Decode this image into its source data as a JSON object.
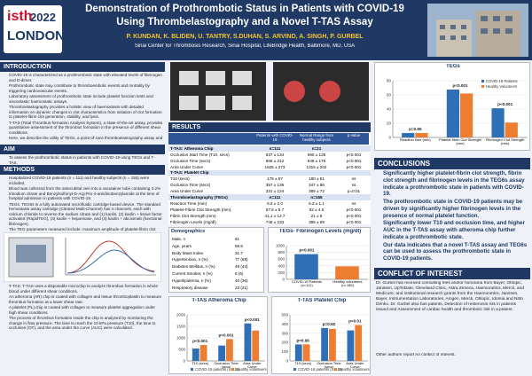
{
  "header": {
    "logo_text": "isth",
    "logo_year": "2022",
    "logo_city": "LONDON",
    "title_line1": "Demonstration of Prothrombotic Status in Patients with COVID-19",
    "title_line2": "Using Thrombelastography and a Novel T-TAS Assay",
    "authors": "P. KUNDAN, K. BLIDEN, U. TANTRY, S.DUHAN, S. ARVIND, A. SINGH, P. GURBEL",
    "affiliation": "Sinai Center for Thrombosis Research, Sinai Hospital, LifeBridge Health, Baltimore, MD, USA"
  },
  "introduction": {
    "heading": "INTRODUCTION",
    "bullets": [
      "COVID-19 is characterized as a prothrombotic state with elevated levels of fibrinogen and D-dimer.",
      "Prothrombotic state may contribute to thromboembolic events and mortality by triggering cardiovascular events.",
      "Laboratory assessment of prothrombotic state include platelet function tests and viscoelastic haemostatic assays.",
      "Thromboelastography provides a holistic view of haemostasis with detailed information on dynamic changes in clot characteristics from initiation of clot formation to platelet-fibrin clot generation, stability, and lysis.",
      "T-TAS (Total Thrombus-formation Analysis System), a state-of-the-art assay, provides quantitative assessment of the thrombus formation in the presence of different shear conditions.",
      "Here, we describe the utility of TEGs, a point-of-care thromboelastography assay and T-TAS to assess prothrombotic state in patients with COVID-19."
    ]
  },
  "aim": {
    "heading": "AIM",
    "bullets": [
      "To assess the prothrombotic status in patients with COVID-19 using TEGs and T-TAS."
    ]
  },
  "methods": {
    "heading": "METHODS",
    "bullets": [
      "Hospitalized COVID-19 patients (n = 111) and healthy subjects (n = 155) were included.",
      "Blood was collected from the antecubital vein into a vacutainer tube containing 3.2% trisodium citrate and Benzylsulfonyl-D-Arg-Pro-4-amidinobenzylamide at the time of hospital admission in patients with COVID-19.",
      "TEGs: TEG6s is a fully automated microfluidic cartridge-based device. The standard hemostasis assay cartridge (Citrated Multi-Channel) has 4 channels, each with calcium chloride to reverse the sodium citrate and (1) kaolin, (2) kaolin + tissue factor activated (RapidTEG), (3) kaolin + heparinase, and (4) kaolin + abciximab (functional fibrinogen).",
      "The TEG parameters measured include: maximum amplitude of platelet-fibrin clot (MA) and fibrin clot, time to initial platelet-fibrin clot formation (R), fibrinogen level."
    ],
    "bullets2": [
      "T-TAS: T-TAS uses a disposable microchip to analyze thrombus formation in whole blood under different shear conditions.",
      "An atheroma (AR) chip is coated with collagen and tissue thromboplastin to measure thrombus formation at a lower shear rate.",
      "A platelet (PL) chip is coated with collagen to measure platelet aggregation under high shear conditions.",
      "The process of thrombus formation inside the chip is analyzed by monitoring the change in flow pressure. The time to reach the 10 kPa pressure (T10), the time to occlusion (OT), and the area under the curve (AUC) were calculated."
    ]
  },
  "results": {
    "heading": "RESULTS",
    "columns": [
      "Patients with COVID-19",
      "Normal Range from healthy subjects",
      "p-value"
    ],
    "rows": [
      [
        "T-TAS: Atheroma Chip",
        "n=111",
        "n=21"
      ],
      [
        "Occlusion Start Time (T10, secs)",
        "537 ± 134",
        "690 ± 125",
        "p<0.001"
      ],
      [
        "Occlusion Time (secs)",
        "666 ± 212",
        "948 ± 176",
        "p<0.001"
      ],
      [
        "Area Under Curve",
        "1625 ± 273",
        "1316 ± 202",
        "p<0.001"
      ],
      [
        "T-TAS: Platelet Chip"
      ],
      [
        "T10 (secs)",
        "179 ± 57",
        "180 ± 51",
        "ns"
      ],
      [
        "Occlusion Time (secs)",
        "357 ± 136",
        "347 ± 86",
        "ns"
      ],
      [
        "Area Under Curve",
        "331 ± 124",
        "389 ± 72",
        "p=0.01"
      ],
      [
        "Thromboelastography (TEGs)",
        "n=111",
        "n=155"
      ],
      [
        "Reaction Time (min)",
        "6.3 ± 2.0",
        "6.3 ± 1.1",
        "ns"
      ],
      [
        "Platelet-Fibrin Clot Strength (mm)",
        "67.5 ± 5.7",
        "62 ± 4.5",
        "p<0.001"
      ],
      [
        "Fibrin Clot Strength (mm)",
        "41.1 ± 12.7",
        "21 ± 8",
        "p<0.001"
      ],
      [
        "Fibrinogen Levels (mg/dl)",
        "748 ± 233",
        "386 ± 88",
        "p<0.001"
      ]
    ]
  },
  "demographics": {
    "title": "Demographics",
    "rows": [
      [
        "Male, n",
        "61"
      ],
      [
        "Age, years",
        "59.6"
      ],
      [
        "Body Mass Index",
        "31.7"
      ],
      [
        "Hypertension, n (%)",
        "77 (69)"
      ],
      [
        "Diabetes Mellitus, n (%)",
        "49 (44)"
      ],
      [
        "Current Smoker, n (%)",
        "6 (5)"
      ],
      [
        "Hyperlipidemia, n (%)",
        "40 (36)"
      ],
      [
        "Respiratory disease",
        "23 (21)"
      ]
    ]
  },
  "charts": {
    "tegs": {
      "type": "bar",
      "title": "TEGs",
      "categories": [
        "Reaction time (min)",
        "Platelet-fibrin Clot Strength (mm)",
        "Fibrinogen Clot Strength (mm)"
      ],
      "series": [
        {
          "name": "COVID-19 Patients",
          "color": "#2f6fb5",
          "values": [
            6.3,
            67.5,
            41.1
          ]
        },
        {
          "name": "Healthy Volunteers",
          "color": "#ed7d31",
          "values": [
            6.3,
            62,
            21
          ]
        }
      ],
      "ylim": [
        0,
        80
      ],
      "yticks": [
        0,
        20,
        40,
        60,
        80
      ],
      "annotations": [
        "p=0.95",
        "p<0.001",
        "p<0.001"
      ]
    },
    "fibrinogen": {
      "type": "bar",
      "title": "TEGs- Fibrinogen Levels (mg/dl)",
      "categories": [
        "COVID-19 Patients (n=111)",
        "Healthy volunteers (n=155)"
      ],
      "values": [
        748,
        386
      ],
      "colors": [
        "#2f6fb5",
        "#ed7d31"
      ],
      "ylim": [
        0,
        1000
      ],
      "yticks": [
        0,
        200,
        400,
        600,
        800,
        1000
      ],
      "annotations": [
        "p<0.001"
      ]
    },
    "atheroma": {
      "type": "bar",
      "title": "T-TAS Atheroma Chip",
      "categories": [
        "T10 (secs)",
        "Occlusion Time (secs)",
        "Area Under Curve"
      ],
      "series": [
        {
          "name": "COVID-19 patients (n=111)",
          "color": "#2f6fb5",
          "values": [
            537,
            666,
            1625
          ]
        },
        {
          "name": "Healthy volunteers (n=21)",
          "color": "#ed7d31",
          "values": [
            690,
            948,
            1316
          ]
        }
      ],
      "ylim": [
        0,
        2000
      ],
      "yticks": [
        0,
        500,
        1000,
        1500,
        2000
      ],
      "annotations": [
        "p<0.001",
        "p<0.001",
        "p<0.001"
      ]
    },
    "platelet": {
      "type": "bar",
      "title": "T-TAS Platelet Chip",
      "categories": [
        "T10 (secs)",
        "Occlusion Time (secs)",
        "Area Under Curve"
      ],
      "series": [
        {
          "name": "COVID-19 patients (n=111)",
          "color": "#2f6fb5",
          "values": [
            179,
            357,
            331
          ]
        },
        {
          "name": "Healthy volunteers (n=21)",
          "color": "#ed7d31",
          "values": [
            180,
            347,
            389
          ]
        }
      ],
      "ylim": [
        0,
        500
      ],
      "yticks": [
        0,
        100,
        200,
        300,
        400,
        500
      ],
      "annotations": [
        "p=0.96",
        "p=0.62",
        "p=0.01"
      ]
    }
  },
  "conclusions": {
    "heading": "CONCLUSIONS",
    "bullets": [
      "Significantly higher platelet-fibrin clot strength, fibrin clot strength and fibrinogen levels in the TEG6s assay indicate a prothrombotic state in patients with COVID-19.",
      "The prothrombotic state in COVID-19 patients may be driven by significantly higher fibrinogen levels in the presence of normal platelet function.",
      "Significantly lower T10 and occlusion time, and higher AUC in the T-TAS assay with atheroma chip further indicate a prothrombotic state.",
      "Our data indicates that a novel T-TAS assay and TEG6s can be used to assess the prothrombotic state in COVID-19 patients."
    ]
  },
  "conflict": {
    "heading": "CONFLICT OF INTEREST",
    "text": "Dr. Gurbel has received consulting fees and/or honoraria from Bayer, Otitopic, Janssen, UpToDate, Cleveland Clinic, Astra Zeneca, Haemonetics, Merck, and Medicure; and institutional research grants from the Haemonetics, Janssen, Bayer, Instrumentation Laboratories, Amgen, Merck, Otitopic, Idorsia and Nitto Denko. Dr. Gurbel also has patents, Detection of restenosis risk in patients issued and Assessment of cardiac health and thrombotic risk in a patient.",
    "text2": "Other authors report no conflict of interest."
  }
}
